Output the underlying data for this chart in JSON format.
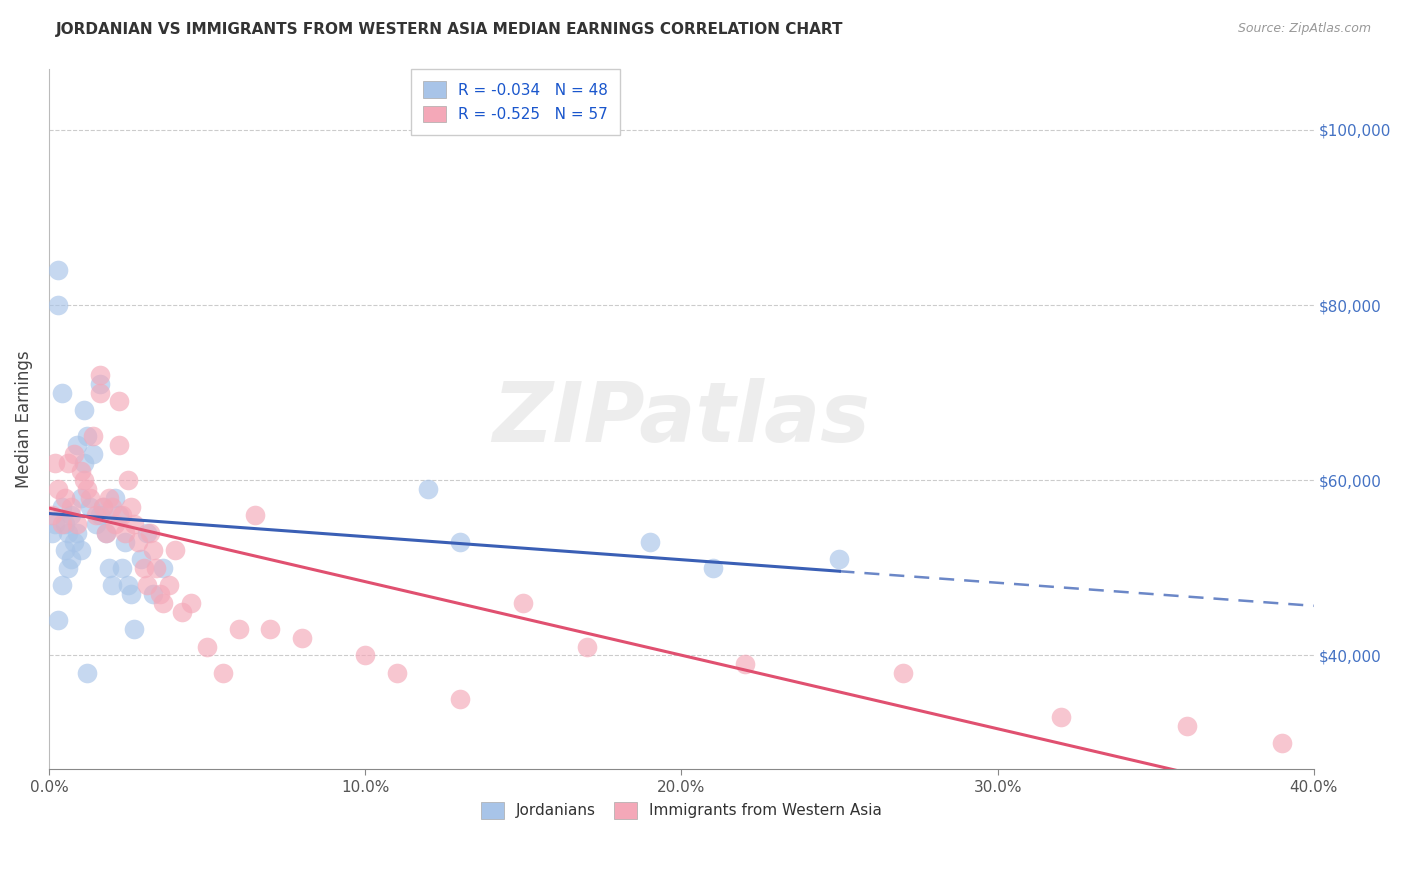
{
  "title": "JORDANIAN VS IMMIGRANTS FROM WESTERN ASIA MEDIAN EARNINGS CORRELATION CHART",
  "source": "Source: ZipAtlas.com",
  "ylabel": "Median Earnings",
  "xlim": [
    0.0,
    0.4
  ],
  "ylim": [
    27000,
    107000
  ],
  "ytick_right_labels": [
    "$40,000",
    "$60,000",
    "$80,000",
    "$100,000"
  ],
  "ytick_right_values": [
    40000,
    60000,
    80000,
    100000
  ],
  "series1_color": "#a8c4e8",
  "series2_color": "#f4a8b8",
  "line1_color": "#3a5fb5",
  "line2_color": "#e05070",
  "legend_R1": "R = -0.034",
  "legend_N1": "N = 48",
  "legend_R2": "R = -0.525",
  "legend_N2": "N = 57",
  "legend_label1": "Jordanians",
  "legend_label2": "Immigrants from Western Asia",
  "watermark": "ZIPatlas",
  "jx": [
    0.001,
    0.002,
    0.003,
    0.003,
    0.004,
    0.004,
    0.005,
    0.005,
    0.006,
    0.006,
    0.007,
    0.007,
    0.008,
    0.009,
    0.009,
    0.01,
    0.01,
    0.011,
    0.011,
    0.012,
    0.013,
    0.014,
    0.015,
    0.016,
    0.016,
    0.017,
    0.018,
    0.019,
    0.02,
    0.021,
    0.022,
    0.023,
    0.024,
    0.025,
    0.026,
    0.027,
    0.029,
    0.031,
    0.033,
    0.036,
    0.12,
    0.13,
    0.19,
    0.21,
    0.25,
    0.003,
    0.004,
    0.012
  ],
  "jy": [
    54000,
    55000,
    84000,
    80000,
    70000,
    57000,
    55000,
    52000,
    50000,
    54000,
    56000,
    51000,
    53000,
    64000,
    54000,
    52000,
    58000,
    68000,
    62000,
    65000,
    57000,
    63000,
    55000,
    56000,
    71000,
    57000,
    54000,
    50000,
    48000,
    58000,
    56000,
    50000,
    53000,
    48000,
    47000,
    43000,
    51000,
    54000,
    47000,
    50000,
    59000,
    53000,
    53000,
    50000,
    51000,
    44000,
    48000,
    38000
  ],
  "ix": [
    0.001,
    0.002,
    0.003,
    0.004,
    0.005,
    0.006,
    0.007,
    0.008,
    0.009,
    0.01,
    0.011,
    0.012,
    0.013,
    0.014,
    0.015,
    0.016,
    0.017,
    0.018,
    0.019,
    0.02,
    0.021,
    0.022,
    0.023,
    0.024,
    0.025,
    0.026,
    0.027,
    0.028,
    0.03,
    0.031,
    0.032,
    0.033,
    0.034,
    0.035,
    0.036,
    0.038,
    0.04,
    0.042,
    0.045,
    0.05,
    0.055,
    0.06,
    0.065,
    0.07,
    0.08,
    0.1,
    0.11,
    0.13,
    0.15,
    0.17,
    0.22,
    0.27,
    0.32,
    0.36,
    0.39,
    0.016,
    0.022
  ],
  "iy": [
    56000,
    62000,
    59000,
    55000,
    58000,
    62000,
    57000,
    63000,
    55000,
    61000,
    60000,
    59000,
    58000,
    65000,
    56000,
    70000,
    57000,
    54000,
    58000,
    57000,
    55000,
    64000,
    56000,
    54000,
    60000,
    57000,
    55000,
    53000,
    50000,
    48000,
    54000,
    52000,
    50000,
    47000,
    46000,
    48000,
    52000,
    45000,
    46000,
    41000,
    38000,
    43000,
    56000,
    43000,
    42000,
    40000,
    38000,
    35000,
    46000,
    41000,
    39000,
    38000,
    33000,
    32000,
    30000,
    72000,
    69000
  ]
}
